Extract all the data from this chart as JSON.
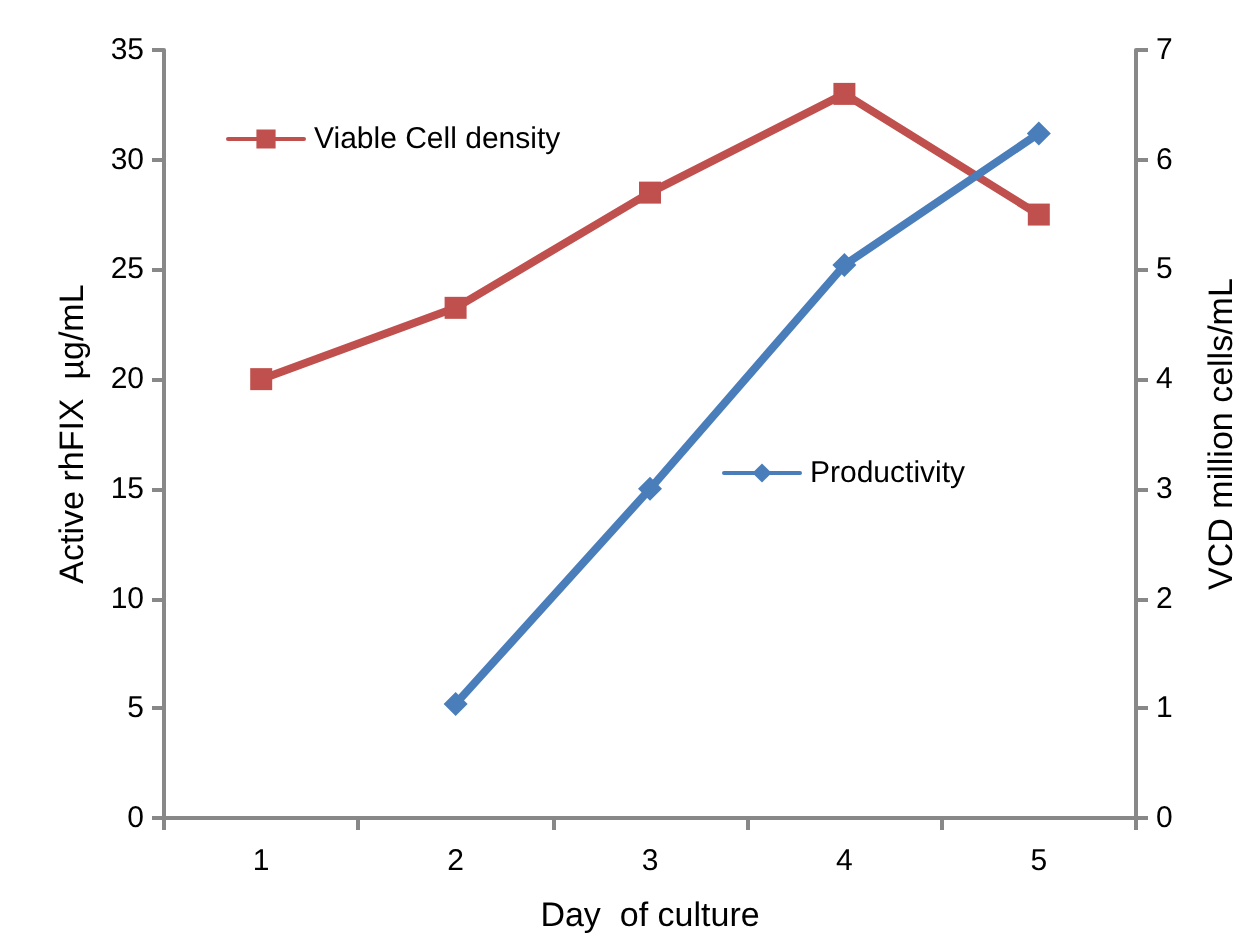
{
  "chart_data": {
    "type": "line",
    "xlabel": "Day  of culture",
    "ylabel": "Active rhFIX  µg/mL",
    "y2label": "VCD million cells/mL",
    "categories": [
      "1",
      "2",
      "3",
      "4",
      "5"
    ],
    "series": [
      {
        "name": "Viable Cell density",
        "color": "#c0504d",
        "marker": "square",
        "axis": "y2",
        "values": [
          4.0,
          4.65,
          5.7,
          6.6,
          5.5
        ]
      },
      {
        "name": "Productivity",
        "color": "#4a7ebb",
        "marker": "diamond",
        "values": [
          null,
          5.2,
          15.0,
          25.2,
          31.2
        ]
      }
    ],
    "ylim": [
      0,
      35
    ],
    "yticks": [
      0,
      5,
      10,
      15,
      20,
      25,
      30,
      35
    ],
    "y2lim": [
      0,
      7
    ],
    "y2ticks": [
      0,
      1,
      2,
      3,
      4,
      5,
      6,
      7
    ],
    "legend": "top left",
    "grid": false,
    "line_style": "solid"
  }
}
